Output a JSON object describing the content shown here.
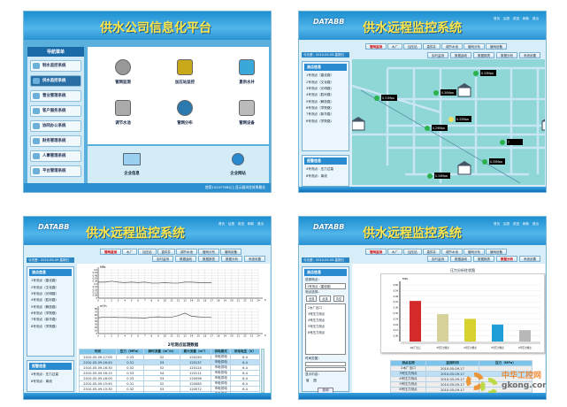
{
  "screen1": {
    "title": "供水公司信息化平台",
    "nav_title": "导航菜单",
    "nav": [
      "制水监控系统",
      "供水监控系统",
      "营业管理系统",
      "客户服务系统",
      "协同办公系统",
      "财务管理系统",
      "人事管理系统",
      "平台管理系统"
    ],
    "nav_active": 1,
    "modules": [
      {
        "label": "管网监测",
        "icon": "gauge-icon"
      },
      {
        "label": "加压站监控",
        "icon": "pump-station-icon"
      },
      {
        "label": "直供水井",
        "icon": "star-icon"
      },
      {
        "label": "调节水池",
        "icon": "tank-icon"
      },
      {
        "label": "管网分布",
        "icon": "globe-search-icon"
      },
      {
        "label": "管网设备",
        "icon": "gear-icon"
      }
    ],
    "bottom": [
      {
        "label": "企业信息",
        "icon": "monitor-icon"
      },
      {
        "label": "企业网站",
        "icon": "ie-icon"
      }
    ],
    "footer": "使用1024*768以上显示器浏览效果最佳"
  },
  "common": {
    "logo": "DATABB",
    "title": "供水远程监控系统",
    "toplinks": [
      "首页",
      "后退",
      "前进",
      "刷新",
      "退出"
    ],
    "tabs": [
      "管网监测",
      "水厂",
      "加压站",
      "直供井",
      "调节水池",
      "管网分布",
      "管网设备"
    ],
    "subtabs": [
      "实时监测",
      "数据曲线",
      "数据报表",
      "数据分析",
      "系统设置"
    ],
    "date": "今天是：2010-05-09 星期日",
    "points_title": "测点信息",
    "points": [
      "1号测点（建设路）",
      "2号测点（文化路）",
      "3号测点（光明路）",
      "4号测点（胜利路）",
      "5号测点（解放路）",
      "6号测点（学院路）",
      "7号测点（新华路）",
      "8号测点（学院路）"
    ],
    "alarm_title": "报警信息",
    "alarms": [
      "4号测点：压力过高",
      "8号测点：离线"
    ]
  },
  "screen2": {
    "legend": [
      "水厂",
      "加压站",
      "阀门",
      "泵站",
      "测点正常",
      "测点报警",
      "测点离线"
    ],
    "point_label": "号测点",
    "readings": [
      "0.33Mpa",
      "0.31Mpa",
      "0.30Mpa",
      "0.32Mpa",
      "0.29Mpa",
      "0.35Mpa",
      "0.34Mpa",
      "?"
    ],
    "colors": {
      "map_bg": "#8fd6d6",
      "road": "#c8e6f5",
      "ok": "#2bb24c",
      "alarm": "#e8e060"
    }
  },
  "screen3": {
    "chart_title": "2号测点监测数据",
    "table": {
      "headers": [
        "时间",
        "压力（MPa）",
        "瞬时流量（m³/h）",
        "累计流量（m³）",
        "供电模式",
        "供电电压（V）"
      ],
      "rows": [
        [
          "2010-05-09-17:00",
          "0.33",
          "52",
          "120150",
          "市电供电",
          "6.4"
        ],
        [
          "2010-05-09-16:45",
          "0.31",
          "53",
          "120137",
          "市电供电",
          "6.4"
        ],
        [
          "2010-05-09-16:30",
          "0.32",
          "52",
          "120124",
          "市电供电",
          "6.4"
        ],
        [
          "2010-05-09-16:15",
          "0.33",
          "54",
          "120111",
          "市电供电",
          "6.4"
        ],
        [
          "2010-05-09-16:00",
          "0.33",
          "53",
          "120098",
          "市电供电",
          "6.4"
        ],
        [
          "2010-05-09-15:45",
          "0.31",
          "52",
          "120085",
          "市电供电",
          "6.4"
        ],
        [
          "2010-05-09-15:30",
          "0.32",
          "53",
          "120072",
          "市电供电",
          "6.4"
        ],
        [
          "2010-05-09-15:15",
          "0.32",
          "53",
          "120059",
          "市电供电",
          "6.4"
        ]
      ]
    }
  },
  "screen4": {
    "form": {
      "select_label": "选择测点：",
      "select_value": "1号测点（建设路）",
      "list_label": "测点选择：",
      "buttons": [
        "全选",
        "反选",
        "清空"
      ],
      "time_label": "时间范围：",
      "show_label": "显示内容：",
      "options": [
        "值",
        "图"
      ],
      "btn": "查询"
    },
    "table": {
      "headers": [
        "测点名称",
        "监测时间",
        "压力（MPa）"
      ],
      "rows": [
        [
          "2水厂出口",
          "2010-05-09-17"
        ],
        [
          "3号压力测点",
          "2010-05-09-17"
        ],
        [
          "4号压力测点",
          "2010-05-09-17"
        ],
        [
          "5号压力测点",
          "2010-05-09-17"
        ],
        [
          "6号压力测点",
          "2010-05-09-17"
        ]
      ]
    },
    "watermark": {
      "cn": "中华工控网",
      "en": "gkong.com"
    }
  },
  "chart_data": [
    {
      "type": "line",
      "ylabel": "MPa",
      "x": [
        0,
        1,
        2,
        3,
        4,
        5,
        6,
        7,
        8,
        9,
        10,
        11,
        12,
        13,
        14,
        15,
        16,
        17
      ],
      "values": [
        0.34,
        0.34,
        0.36,
        0.34,
        0.33,
        0.34,
        0.33,
        0.34,
        0.32,
        0.32,
        0.33,
        0.32,
        0.32,
        0.34,
        0.34,
        0.33,
        0.33,
        0.33
      ],
      "xlim": [
        0,
        24
      ],
      "ylim": [
        0,
        0.6
      ],
      "yticks": [
        0,
        0.06,
        0.12,
        0.18,
        0.24,
        0.3,
        0.36,
        0.42,
        0.48,
        0.54,
        0.6
      ],
      "xlabel": "h",
      "grid": true
    },
    {
      "type": "line",
      "ylabel": "m³/h",
      "x": [
        0,
        1,
        2,
        3,
        4,
        5,
        6,
        7,
        8,
        9,
        10,
        11,
        12,
        13,
        14,
        15,
        16,
        17
      ],
      "values": [
        51,
        53,
        53,
        52,
        52,
        51,
        51,
        50,
        53,
        54,
        53,
        53,
        58,
        66,
        56,
        54,
        53,
        52
      ],
      "xlim": [
        0,
        24
      ],
      "ylim": [
        0,
        80
      ],
      "yticks": [
        0,
        10,
        20,
        30,
        40,
        50,
        60,
        70,
        80
      ],
      "xlabel": "h",
      "grid": true
    },
    {
      "type": "bar",
      "title": "压力分析柱状图",
      "ylabel": "MPa",
      "categories": [
        "2水厂出口",
        "3号压力测点",
        "4号压力测点",
        "5号压力测点",
        "6号压力测点"
      ],
      "values": [
        0.43,
        0.29,
        0.24,
        0.18,
        0.12
      ],
      "colors": [
        "#d42a2a",
        "#d6d29a",
        "#d8d230",
        "#1f9fd6",
        "#b8b8b8"
      ],
      "ylim": [
        0,
        0.6
      ],
      "yticks": [
        0.06,
        0.12,
        0.18,
        0.24,
        0.3,
        0.36,
        0.42,
        0.48,
        0.54,
        0.6
      ],
      "grid": true
    }
  ]
}
